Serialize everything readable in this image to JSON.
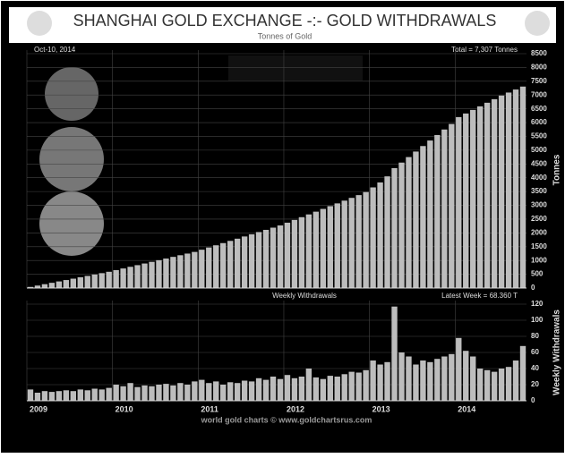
{
  "chart_data": [
    {
      "type": "bar",
      "title": "SHANGHAI GOLD EXCHANGE -:- GOLD WITHDRAWALS",
      "subtitle": "Tonnes of Gold",
      "y_label": "Tonnes",
      "date_note": "Oct-10, 2014",
      "total_note": "Total = 7,307 Tonnes",
      "color": "#bdbdbd",
      "grid": true,
      "values": [
        40,
        90,
        140,
        190,
        240,
        290,
        340,
        390,
        440,
        490,
        540,
        590,
        650,
        710,
        770,
        830,
        890,
        950,
        1010,
        1070,
        1130,
        1190,
        1250,
        1310,
        1390,
        1470,
        1550,
        1630,
        1710,
        1790,
        1870,
        1950,
        2030,
        2110,
        2190,
        2270,
        2370,
        2470,
        2570,
        2670,
        2770,
        2870,
        2970,
        3070,
        3170,
        3270,
        3370,
        3480,
        3650,
        3830,
        4050,
        4350,
        4550,
        4750,
        4950,
        5150,
        5350,
        5550,
        5750,
        5950,
        6200,
        6330,
        6460,
        6590,
        6720,
        6850,
        6980,
        7090,
        7200,
        7307
      ],
      "ylim": [
        0,
        8500
      ],
      "yticks": [
        0,
        500,
        1000,
        1500,
        2000,
        2500,
        3000,
        3500,
        4000,
        4500,
        5000,
        5500,
        6000,
        6500,
        7000,
        7500,
        8000,
        8500
      ]
    },
    {
      "type": "bar",
      "panel_label": "Weekly Withdrawals",
      "latest_note": "Latest Week = 68.360 T",
      "y_label": "Weekly Withdrawals",
      "footer": "world gold charts © www.goldchartsrus.com",
      "color": "#bdbdbd",
      "grid": true,
      "categories": [
        "2009",
        null,
        null,
        null,
        null,
        null,
        null,
        null,
        null,
        null,
        null,
        null,
        "2010",
        null,
        null,
        null,
        null,
        null,
        null,
        null,
        null,
        null,
        null,
        null,
        "2011",
        null,
        null,
        null,
        null,
        null,
        null,
        null,
        null,
        null,
        null,
        null,
        "2012",
        null,
        null,
        null,
        null,
        null,
        null,
        null,
        null,
        null,
        null,
        null,
        "2013",
        null,
        null,
        null,
        null,
        null,
        null,
        null,
        null,
        null,
        null,
        null,
        "2014",
        null,
        null,
        null,
        null,
        null,
        null,
        null,
        null,
        null
      ],
      "values": [
        14,
        10,
        12,
        11,
        12,
        13,
        12,
        14,
        13,
        15,
        14,
        16,
        20,
        18,
        22,
        17,
        19,
        18,
        20,
        21,
        19,
        22,
        20,
        24,
        26,
        22,
        24,
        20,
        23,
        22,
        25,
        24,
        28,
        26,
        30,
        27,
        32,
        28,
        30,
        40,
        29,
        27,
        31,
        30,
        33,
        36,
        35,
        38,
        50,
        45,
        48,
        117,
        60,
        55,
        45,
        50,
        48,
        52,
        55,
        58,
        78,
        62,
        55,
        40,
        38,
        36,
        40,
        42,
        50,
        68
      ],
      "ylim": [
        0,
        120
      ],
      "yticks": [
        0,
        20,
        40,
        60,
        80,
        100,
        120
      ]
    }
  ]
}
